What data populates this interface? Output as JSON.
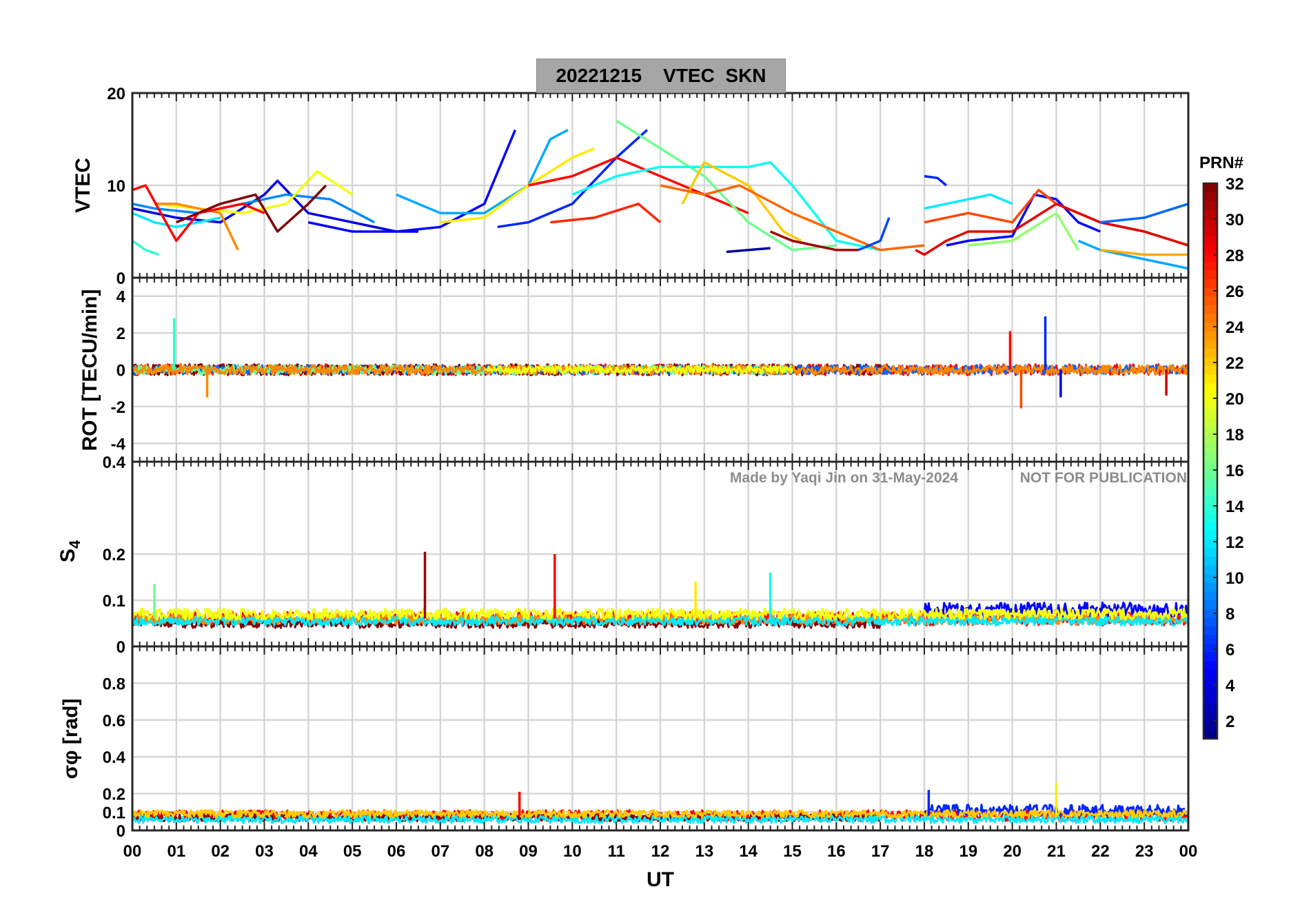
{
  "figure": {
    "title_date": "20221215",
    "title_quantity": "VTEC",
    "title_station": "SKN",
    "watermark_author": "Made by Yaqi Jin on 31-May-2024",
    "watermark_note": "NOT FOR PUBLICATION"
  },
  "chart_data": [
    {
      "type": "line",
      "name": "vtec",
      "ylabel": "VTEC",
      "ylim": [
        0,
        20
      ],
      "yticks": [
        0,
        10,
        20
      ],
      "grid": true,
      "series": [
        {
          "prn": 4,
          "x": [
            0.0,
            1.0,
            2.0,
            3.0,
            3.3,
            4.0,
            5.0,
            6.0,
            6.5
          ],
          "y": [
            7.5,
            6.5,
            6.0,
            9.0,
            10.5,
            7.0,
            6.0,
            5.0,
            5.0
          ]
        },
        {
          "prn": 9,
          "x": [
            0.0,
            0.5,
            1.5,
            2.5,
            3.5,
            4.5,
            5.5
          ],
          "y": [
            8.0,
            7.5,
            7.0,
            8.0,
            9.0,
            8.5,
            6.0
          ]
        },
        {
          "prn": 12,
          "x": [
            0.0,
            0.5,
            1.0,
            2.0
          ],
          "y": [
            7.0,
            6.0,
            5.5,
            6.5
          ]
        },
        {
          "prn": 14,
          "x": [
            0.0,
            0.3,
            0.6
          ],
          "y": [
            4.0,
            3.0,
            2.5
          ]
        },
        {
          "prn": 20,
          "x": [
            0.5,
            1.5,
            2.5,
            3.5,
            4.2,
            5.0
          ],
          "y": [
            8.0,
            7.5,
            7.0,
            8.0,
            11.5,
            9.0
          ]
        },
        {
          "prn": 24,
          "x": [
            0.5,
            1.0,
            2.0,
            2.4
          ],
          "y": [
            8.0,
            8.0,
            7.0,
            3.0
          ]
        },
        {
          "prn": 28,
          "x": [
            0.0,
            0.3,
            1.0,
            1.5,
            2.0,
            2.5,
            3.0
          ],
          "y": [
            9.5,
            10.0,
            4.0,
            7.0,
            7.5,
            8.0,
            7.0
          ]
        },
        {
          "prn": 32,
          "x": [
            1.0,
            2.0,
            2.8,
            3.3,
            4.0,
            4.4
          ],
          "y": [
            6.0,
            8.0,
            9.0,
            5.0,
            8.0,
            10.0
          ]
        },
        {
          "prn": 5,
          "x": [
            4.0,
            5.0,
            6.0,
            7.0,
            8.0,
            8.7
          ],
          "y": [
            6.0,
            5.0,
            5.0,
            5.5,
            8.0,
            16.0
          ]
        },
        {
          "prn": 10,
          "x": [
            6.0,
            7.0,
            8.0,
            9.0,
            9.5,
            9.9
          ],
          "y": [
            9.0,
            7.0,
            7.0,
            10.0,
            15.0,
            16.0
          ]
        },
        {
          "prn": 21,
          "x": [
            7.0,
            8.0,
            9.0,
            10.0,
            10.5
          ],
          "y": [
            6.0,
            6.5,
            10.0,
            13.0,
            14.0
          ]
        },
        {
          "prn": 6,
          "x": [
            8.3,
            9.0,
            10.0,
            11.0,
            11.7
          ],
          "y": [
            5.5,
            6.0,
            8.0,
            13.0,
            16.0
          ]
        },
        {
          "prn": 28,
          "x": [
            9.0,
            10.0,
            11.0,
            12.0,
            13.0,
            14.0
          ],
          "y": [
            10.0,
            11.0,
            13.0,
            11.0,
            9.0,
            7.0
          ]
        },
        {
          "prn": 16,
          "x": [
            11.0,
            12.0,
            13.0,
            14.0,
            15.0,
            16.0
          ],
          "y": [
            17.0,
            14.0,
            11.0,
            6.0,
            3.0,
            3.5
          ]
        },
        {
          "prn": 13,
          "x": [
            10.0,
            11.0,
            12.0,
            13.0,
            14.0,
            14.5,
            15.0,
            16.0,
            17.0
          ],
          "y": [
            9.0,
            11.0,
            12.0,
            12.0,
            12.0,
            12.5,
            10.0,
            4.0,
            3.0
          ]
        },
        {
          "prn": 22,
          "x": [
            12.5,
            13.0,
            14.0,
            14.8,
            15.2
          ],
          "y": [
            8.0,
            12.5,
            10.0,
            5.0,
            4.0
          ]
        },
        {
          "prn": 25,
          "x": [
            12.0,
            13.0,
            13.8,
            15.0,
            16.0,
            17.0,
            18.0
          ],
          "y": [
            10.0,
            9.0,
            10.0,
            7.0,
            5.0,
            3.0,
            3.5
          ]
        },
        {
          "prn": 27,
          "x": [
            9.5,
            10.5,
            11.5,
            12.0
          ],
          "y": [
            6.0,
            6.5,
            8.0,
            6.0
          ]
        },
        {
          "prn": 2,
          "x": [
            13.5,
            14.0,
            14.5
          ],
          "y": [
            2.8,
            3.0,
            3.2
          ]
        },
        {
          "prn": 31,
          "x": [
            14.5,
            15.0,
            16.0,
            16.5
          ],
          "y": [
            5.0,
            4.0,
            3.0,
            3.0
          ]
        },
        {
          "prn": 7,
          "x": [
            16.5,
            17.0,
            17.2
          ],
          "y": [
            3.0,
            4.0,
            6.5
          ]
        },
        {
          "prn": 6,
          "x": [
            18.0,
            18.3,
            18.5
          ],
          "y": [
            11.0,
            10.8,
            10.0
          ]
        },
        {
          "prn": 12,
          "x": [
            18.0,
            18.5,
            19.0,
            19.5,
            20.0
          ],
          "y": [
            7.5,
            8.0,
            8.5,
            9.0,
            8.0
          ]
        },
        {
          "prn": 5,
          "x": [
            18.5,
            19.0,
            20.0,
            20.5,
            21.0,
            21.5,
            22.0
          ],
          "y": [
            3.5,
            4.0,
            4.5,
            9.0,
            8.5,
            6.0,
            5.0
          ]
        },
        {
          "prn": 26,
          "x": [
            18.0,
            19.0,
            20.0,
            20.6,
            21.0,
            22.0,
            23.0,
            24.0
          ],
          "y": [
            6.0,
            7.0,
            6.0,
            9.5,
            8.0,
            6.0,
            5.0,
            3.5
          ]
        },
        {
          "prn": 29,
          "x": [
            17.8,
            18.0,
            18.5,
            19.0,
            20.0,
            21.0,
            22.0,
            23.0,
            24.0
          ],
          "y": [
            3.0,
            2.5,
            4.0,
            5.0,
            5.0,
            8.0,
            6.0,
            5.0,
            3.5
          ]
        },
        {
          "prn": 17,
          "x": [
            19.0,
            20.0,
            21.0,
            21.5
          ],
          "y": [
            3.5,
            4.0,
            7.0,
            3.0
          ]
        },
        {
          "prn": 10,
          "x": [
            21.5,
            22.0,
            23.0,
            23.5,
            24.0
          ],
          "y": [
            4.0,
            3.0,
            2.0,
            1.5,
            1.0
          ]
        },
        {
          "prn": 8,
          "x": [
            22.0,
            23.0,
            24.0
          ],
          "y": [
            6.0,
            6.5,
            8.0
          ]
        },
        {
          "prn": 23,
          "x": [
            22.0,
            23.0,
            24.0
          ],
          "y": [
            3.0,
            2.5,
            2.5
          ]
        }
      ]
    },
    {
      "type": "line",
      "name": "rot",
      "ylabel": "ROT [TECU/min]",
      "ylim": [
        -5,
        5
      ],
      "yticks": [
        -4,
        -2,
        0,
        2,
        4
      ],
      "grid": true,
      "series_summary": [
        {
          "prn": 28,
          "x_range": [
            0,
            24
          ],
          "baseline": 0.0,
          "spread": 0.3
        },
        {
          "prn": 32,
          "x_range": [
            0,
            17
          ],
          "baseline": 0.0,
          "spread": 0.3
        },
        {
          "prn": 8,
          "x_range": [
            0,
            24
          ],
          "baseline": 0.0,
          "spread": 0.25
        },
        {
          "prn": 16,
          "x_range": [
            0,
            15
          ],
          "baseline": 0.0,
          "spread": 0.25
        },
        {
          "prn": 24,
          "x_range": [
            0,
            24
          ],
          "baseline": 0.0,
          "spread": 0.25
        },
        {
          "prn": 20,
          "x_range": [
            8,
            15
          ],
          "baseline": 0.0,
          "spread": 0.2
        }
      ],
      "spikes": [
        {
          "prn": 14,
          "x": 0.95,
          "y": 2.8
        },
        {
          "prn": 24,
          "x": 1.7,
          "y": -1.5
        },
        {
          "prn": 28,
          "x": 19.95,
          "y": 2.1
        },
        {
          "prn": 26,
          "x": 20.2,
          "y": -2.1
        },
        {
          "prn": 6,
          "x": 20.75,
          "y": 2.9
        },
        {
          "prn": 4,
          "x": 21.1,
          "y": -1.5
        },
        {
          "prn": 30,
          "x": 23.5,
          "y": -1.4
        }
      ]
    },
    {
      "type": "line",
      "name": "s4",
      "ylabel": "S4",
      "ylim": [
        0,
        0.4
      ],
      "yticks": [
        0,
        0.1,
        0.2,
        0.4
      ],
      "grid": true,
      "series_summary": [
        {
          "prn": 28,
          "x_range": [
            0,
            24
          ],
          "baseline": 0.06,
          "spread": 0.015
        },
        {
          "prn": 32,
          "x_range": [
            0.5,
            17
          ],
          "baseline": 0.05,
          "spread": 0.01
        },
        {
          "prn": 24,
          "x_range": [
            0,
            24
          ],
          "baseline": 0.06,
          "spread": 0.012
        },
        {
          "prn": 12,
          "x_range": [
            0,
            24
          ],
          "baseline": 0.055,
          "spread": 0.01
        },
        {
          "prn": 5,
          "x_range": [
            18,
            24
          ],
          "baseline": 0.08,
          "spread": 0.015
        },
        {
          "prn": 20,
          "x_range": [
            0,
            24
          ],
          "baseline": 0.07,
          "spread": 0.012
        }
      ],
      "spikes": [
        {
          "prn": 31,
          "x": 6.65,
          "y": 0.205
        },
        {
          "prn": 28,
          "x": 9.6,
          "y": 0.2
        },
        {
          "prn": 21,
          "x": 12.8,
          "y": 0.14
        },
        {
          "prn": 13,
          "x": 14.5,
          "y": 0.16
        },
        {
          "prn": 16,
          "x": 0.5,
          "y": 0.135
        }
      ]
    },
    {
      "type": "line",
      "name": "sigma_phi",
      "ylabel": "σφ [rad]",
      "ylim": [
        0,
        1
      ],
      "yticks": [
        0,
        0.1,
        0.2,
        0.4,
        0.6,
        0.8
      ],
      "grid": true,
      "series_summary": [
        {
          "prn": 28,
          "x_range": [
            0,
            24
          ],
          "baseline": 0.08,
          "spread": 0.03
        },
        {
          "prn": 32,
          "x_range": [
            0,
            17
          ],
          "baseline": 0.07,
          "spread": 0.02
        },
        {
          "prn": 12,
          "x_range": [
            0,
            24
          ],
          "baseline": 0.06,
          "spread": 0.02
        },
        {
          "prn": 6,
          "x_range": [
            18,
            24
          ],
          "baseline": 0.11,
          "spread": 0.03
        },
        {
          "prn": 22,
          "x_range": [
            0,
            24
          ],
          "baseline": 0.09,
          "spread": 0.02
        }
      ],
      "spikes": [
        {
          "prn": 28,
          "x": 8.8,
          "y": 0.21
        },
        {
          "prn": 21,
          "x": 21.0,
          "y": 0.26
        },
        {
          "prn": 6,
          "x": 18.1,
          "y": 0.22
        }
      ]
    }
  ],
  "xaxis": {
    "label": "UT",
    "xlim": [
      0,
      24
    ],
    "tick_labels": [
      "00",
      "01",
      "02",
      "03",
      "04",
      "05",
      "06",
      "07",
      "08",
      "09",
      "10",
      "11",
      "12",
      "13",
      "14",
      "15",
      "16",
      "17",
      "18",
      "19",
      "20",
      "21",
      "22",
      "23",
      "00"
    ]
  },
  "colorbar": {
    "title": "PRN#",
    "range": [
      1,
      32
    ],
    "tick_labels": [
      "2",
      "4",
      "6",
      "8",
      "10",
      "12",
      "14",
      "16",
      "18",
      "20",
      "22",
      "24",
      "26",
      "28",
      "30",
      "32"
    ],
    "colormap": "jet"
  }
}
